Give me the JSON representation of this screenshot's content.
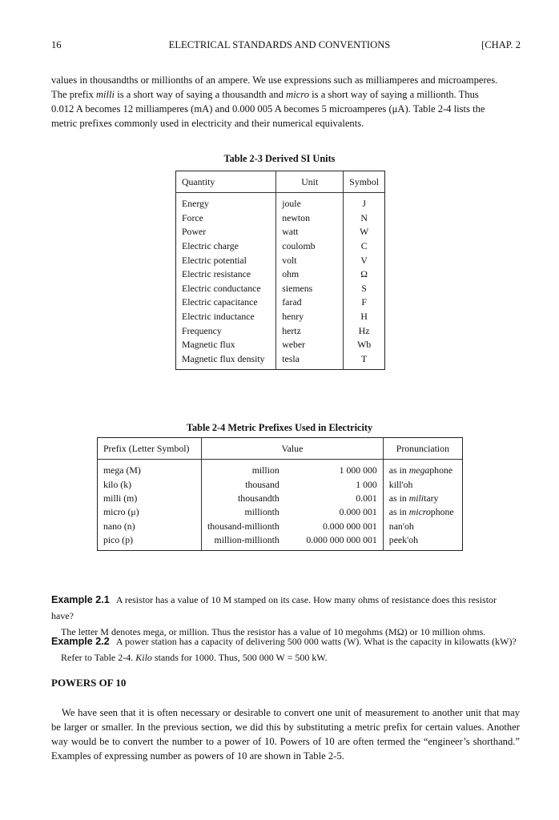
{
  "header": {
    "page_number": "16",
    "running_title": "ELECTRICAL STANDARDS AND CONVENTIONS",
    "chapter": "[CHAP. 2"
  },
  "intro": {
    "line1": "values in thousandths or millionths of an ampere. We use expressions such as milliamperes and microamperes.",
    "line2_a": "The prefix ",
    "line2_b": "milli",
    "line2_c": " is a short way of saying a thousandth and ",
    "line2_d": "micro",
    "line2_e": " is a short way of saying a millionth. Thus",
    "line3": "0.012 A becomes 12 milliamperes (mA) and 0.000 005 A becomes 5 microamperes (μA). Table 2-4 lists the",
    "line4": "metric prefixes commonly used in electricity and their numerical equivalents."
  },
  "table3": {
    "caption": "Table 2-3  Derived SI Units",
    "headers": [
      "Quantity",
      "Unit",
      "Symbol"
    ],
    "rows": [
      [
        "Energy",
        "joule",
        "J"
      ],
      [
        "Force",
        "newton",
        "N"
      ],
      [
        "Power",
        "watt",
        "W"
      ],
      [
        "Electric charge",
        "coulomb",
        "C"
      ],
      [
        "Electric potential",
        "volt",
        "V"
      ],
      [
        "Electric resistance",
        "ohm",
        "Ω"
      ],
      [
        "Electric conductance",
        "siemens",
        "S"
      ],
      [
        "Electric capacitance",
        "farad",
        "F"
      ],
      [
        "Electric inductance",
        "henry",
        "H"
      ],
      [
        "Frequency",
        "hertz",
        "Hz"
      ],
      [
        "Magnetic flux",
        "weber",
        "Wb"
      ],
      [
        "Magnetic flux density",
        "tesla",
        "T"
      ]
    ]
  },
  "table4": {
    "caption": "Table 2-4  Metric Prefixes Used in Electricity",
    "headers": [
      "Prefix (Letter Symbol)",
      "Value",
      "Pronunciation"
    ],
    "rows": [
      {
        "prefix": "mega (M)",
        "word": "million",
        "number": "1 000 000",
        "pre": "as in ",
        "em": "mega",
        "post": "phone"
      },
      {
        "prefix": "kilo (k)",
        "word": "thousand",
        "number": "1 000",
        "pre": "kill'oh",
        "em": "",
        "post": ""
      },
      {
        "prefix": "milli (m)",
        "word": "thousandth",
        "number": "0.001",
        "pre": "as in ",
        "em": "mili",
        "post": "tary"
      },
      {
        "prefix": "micro (μ)",
        "word": "millionth",
        "number": "0.000 001",
        "pre": "as in ",
        "em": "micro",
        "post": "phone"
      },
      {
        "prefix": "nano (n)",
        "word": "thousand-millionth",
        "number": "0.000 000 001",
        "pre": "nan'oh",
        "em": "",
        "post": ""
      },
      {
        "prefix": "pico (p)",
        "word": "million-millionth",
        "number": "0.000 000 000 001",
        "pre": "peek'oh",
        "em": "",
        "post": ""
      }
    ]
  },
  "examples": [
    {
      "label": "Example 2.1",
      "q": "A resistor has a value of 10 M stamped on its case. How many ohms of resistance does this resistor have?",
      "a_pre": "The letter M denotes mega, or million. Thus the resistor has a value of 10 megohms (MΩ) or 10 million ohms.",
      "a_em": "",
      "a_post": ""
    },
    {
      "label": "Example 2.2",
      "q": "A power station has a capacity of delivering 500 000 watts (W). What is the capacity in kilowatts (kW)?",
      "a_pre": "Refer to Table 2-4. ",
      "a_em": "Kilo",
      "a_post": " stands for 1000. Thus, 500 000 W = 500 kW."
    }
  ],
  "section": {
    "title": "POWERS OF 10",
    "text": "We have seen that it is often necessary or desirable to convert one unit of measurement to another unit that may be larger or smaller. In the previous section, we did this by substituting a metric prefix for certain values. Another way would be to convert the number to a power of 10. Powers of 10 are often termed the “engineer’s shorthand.” Examples of expressing number as powers of 10 are shown in Table 2-5."
  }
}
